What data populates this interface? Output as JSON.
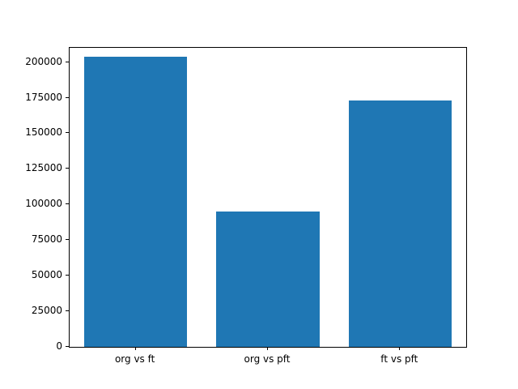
{
  "chart_data": {
    "type": "bar",
    "categories": [
      "org vs ft",
      "org vs pft",
      "ft vs pft"
    ],
    "values": [
      204000,
      95000,
      173000
    ],
    "title": "",
    "xlabel": "",
    "ylabel": "",
    "ylim": [
      0,
      210000
    ],
    "yticks": [
      0,
      25000,
      50000,
      75000,
      100000,
      125000,
      150000,
      175000,
      200000
    ],
    "bar_color": "#1f77b4",
    "bar_width_fraction": 0.78,
    "grid": false,
    "legend": null
  }
}
